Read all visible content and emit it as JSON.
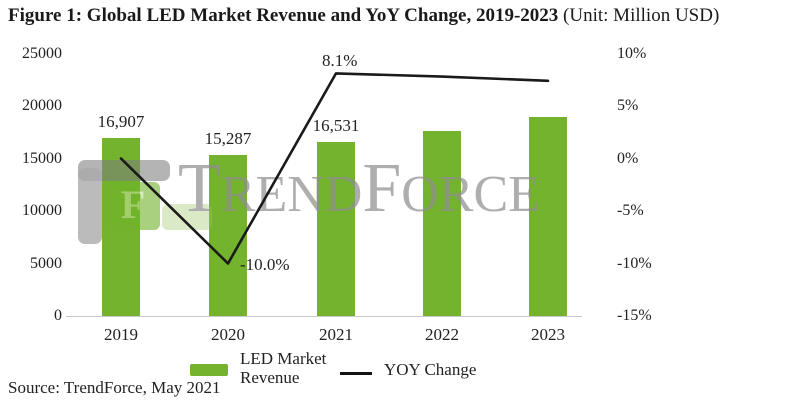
{
  "figure": {
    "title_bold": "Figure 1: Global LED Market Revenue and YoY Change, 2019-2023",
    "title_unit": " (Unit: Million USD)",
    "source": "Source: TrendForce, May 2021",
    "watermark": {
      "t1": "T",
      "p1": "REND",
      "t2": "F",
      "p2": "ORCE",
      "logo_glyph": "F"
    }
  },
  "legend": {
    "bar_line1": "LED Market",
    "bar_line2": "Revenue",
    "line_label": "YOY Change"
  },
  "colors": {
    "bar_green": "#73b32d",
    "line_black": "#1a1a1a",
    "watermark_gray": "#8f8f8f",
    "axis_gray": "#c9c9c9"
  },
  "chart_data": {
    "type": "combo_bar_line",
    "title": "Figure 1: Global LED Market Revenue and YoY Change, 2019-2023",
    "unit": "Million USD",
    "categories": [
      "2019",
      "2020",
      "2021",
      "2022",
      "2023"
    ],
    "series": [
      {
        "name": "LED Market Revenue",
        "chart": "bar",
        "axis": "left",
        "values": [
          16907,
          15287,
          16531,
          17600,
          18950
        ],
        "point_labels": [
          "16,907",
          "15,287",
          "16,531",
          "",
          ""
        ]
      },
      {
        "name": "YOY Change",
        "chart": "line",
        "axis": "right",
        "values": [
          0.0,
          -10.0,
          8.1,
          7.8,
          7.4
        ],
        "point_labels": [
          "",
          "-10.0%",
          "8.1%",
          "",
          ""
        ]
      }
    ],
    "left_axis": {
      "range": [
        0,
        25000
      ],
      "ticks": [
        0,
        5000,
        10000,
        15000,
        20000,
        25000
      ]
    },
    "right_axis": {
      "range": [
        -15,
        10
      ],
      "ticks": [
        -15,
        -10,
        -5,
        0,
        5,
        10
      ],
      "format": "percent"
    },
    "grid": false,
    "legend_position": "bottom"
  }
}
